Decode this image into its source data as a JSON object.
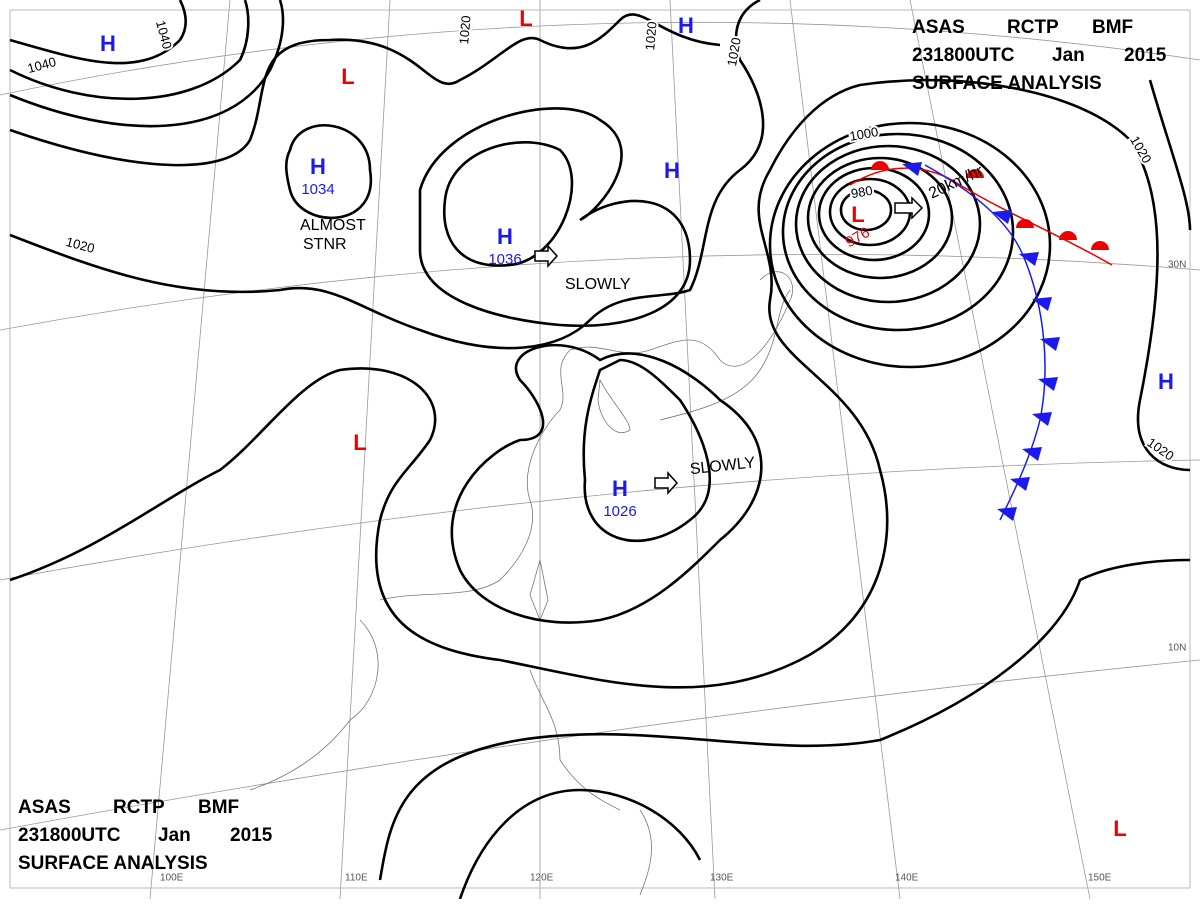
{
  "header": {
    "code": [
      "ASAS",
      "RCTP",
      "BMF"
    ],
    "time": [
      "231800UTC",
      "Jan",
      "2015"
    ],
    "title": "SURFACE ANALYSIS"
  },
  "centers": [
    {
      "symbol": "H"
    },
    {
      "symbol": "L"
    },
    {
      "symbol": "L"
    },
    {
      "symbol": "H"
    },
    {
      "symbol": "H",
      "pressure": 1034
    },
    {
      "symbol": "H",
      "pressure": 1036
    },
    {
      "symbol": "H"
    },
    {
      "symbol": "H",
      "pressure": 1026
    },
    {
      "symbol": "L"
    },
    {
      "symbol": "L",
      "pressure": 976
    },
    {
      "symbol": "H"
    },
    {
      "symbol": "L"
    }
  ],
  "notes": [
    "ALMOST",
    "STNR",
    "SLOWLY",
    "SLOWLY",
    "20km/hr"
  ],
  "isobar_labels": [
    1040,
    1040,
    1020,
    1020,
    1020,
    1020,
    1000,
    980,
    1020,
    1020
  ],
  "longitudes": [
    "100E",
    "110E",
    "120E",
    "130E",
    "140E",
    "150E"
  ],
  "latitudes": [
    "30N",
    "10N"
  ]
}
